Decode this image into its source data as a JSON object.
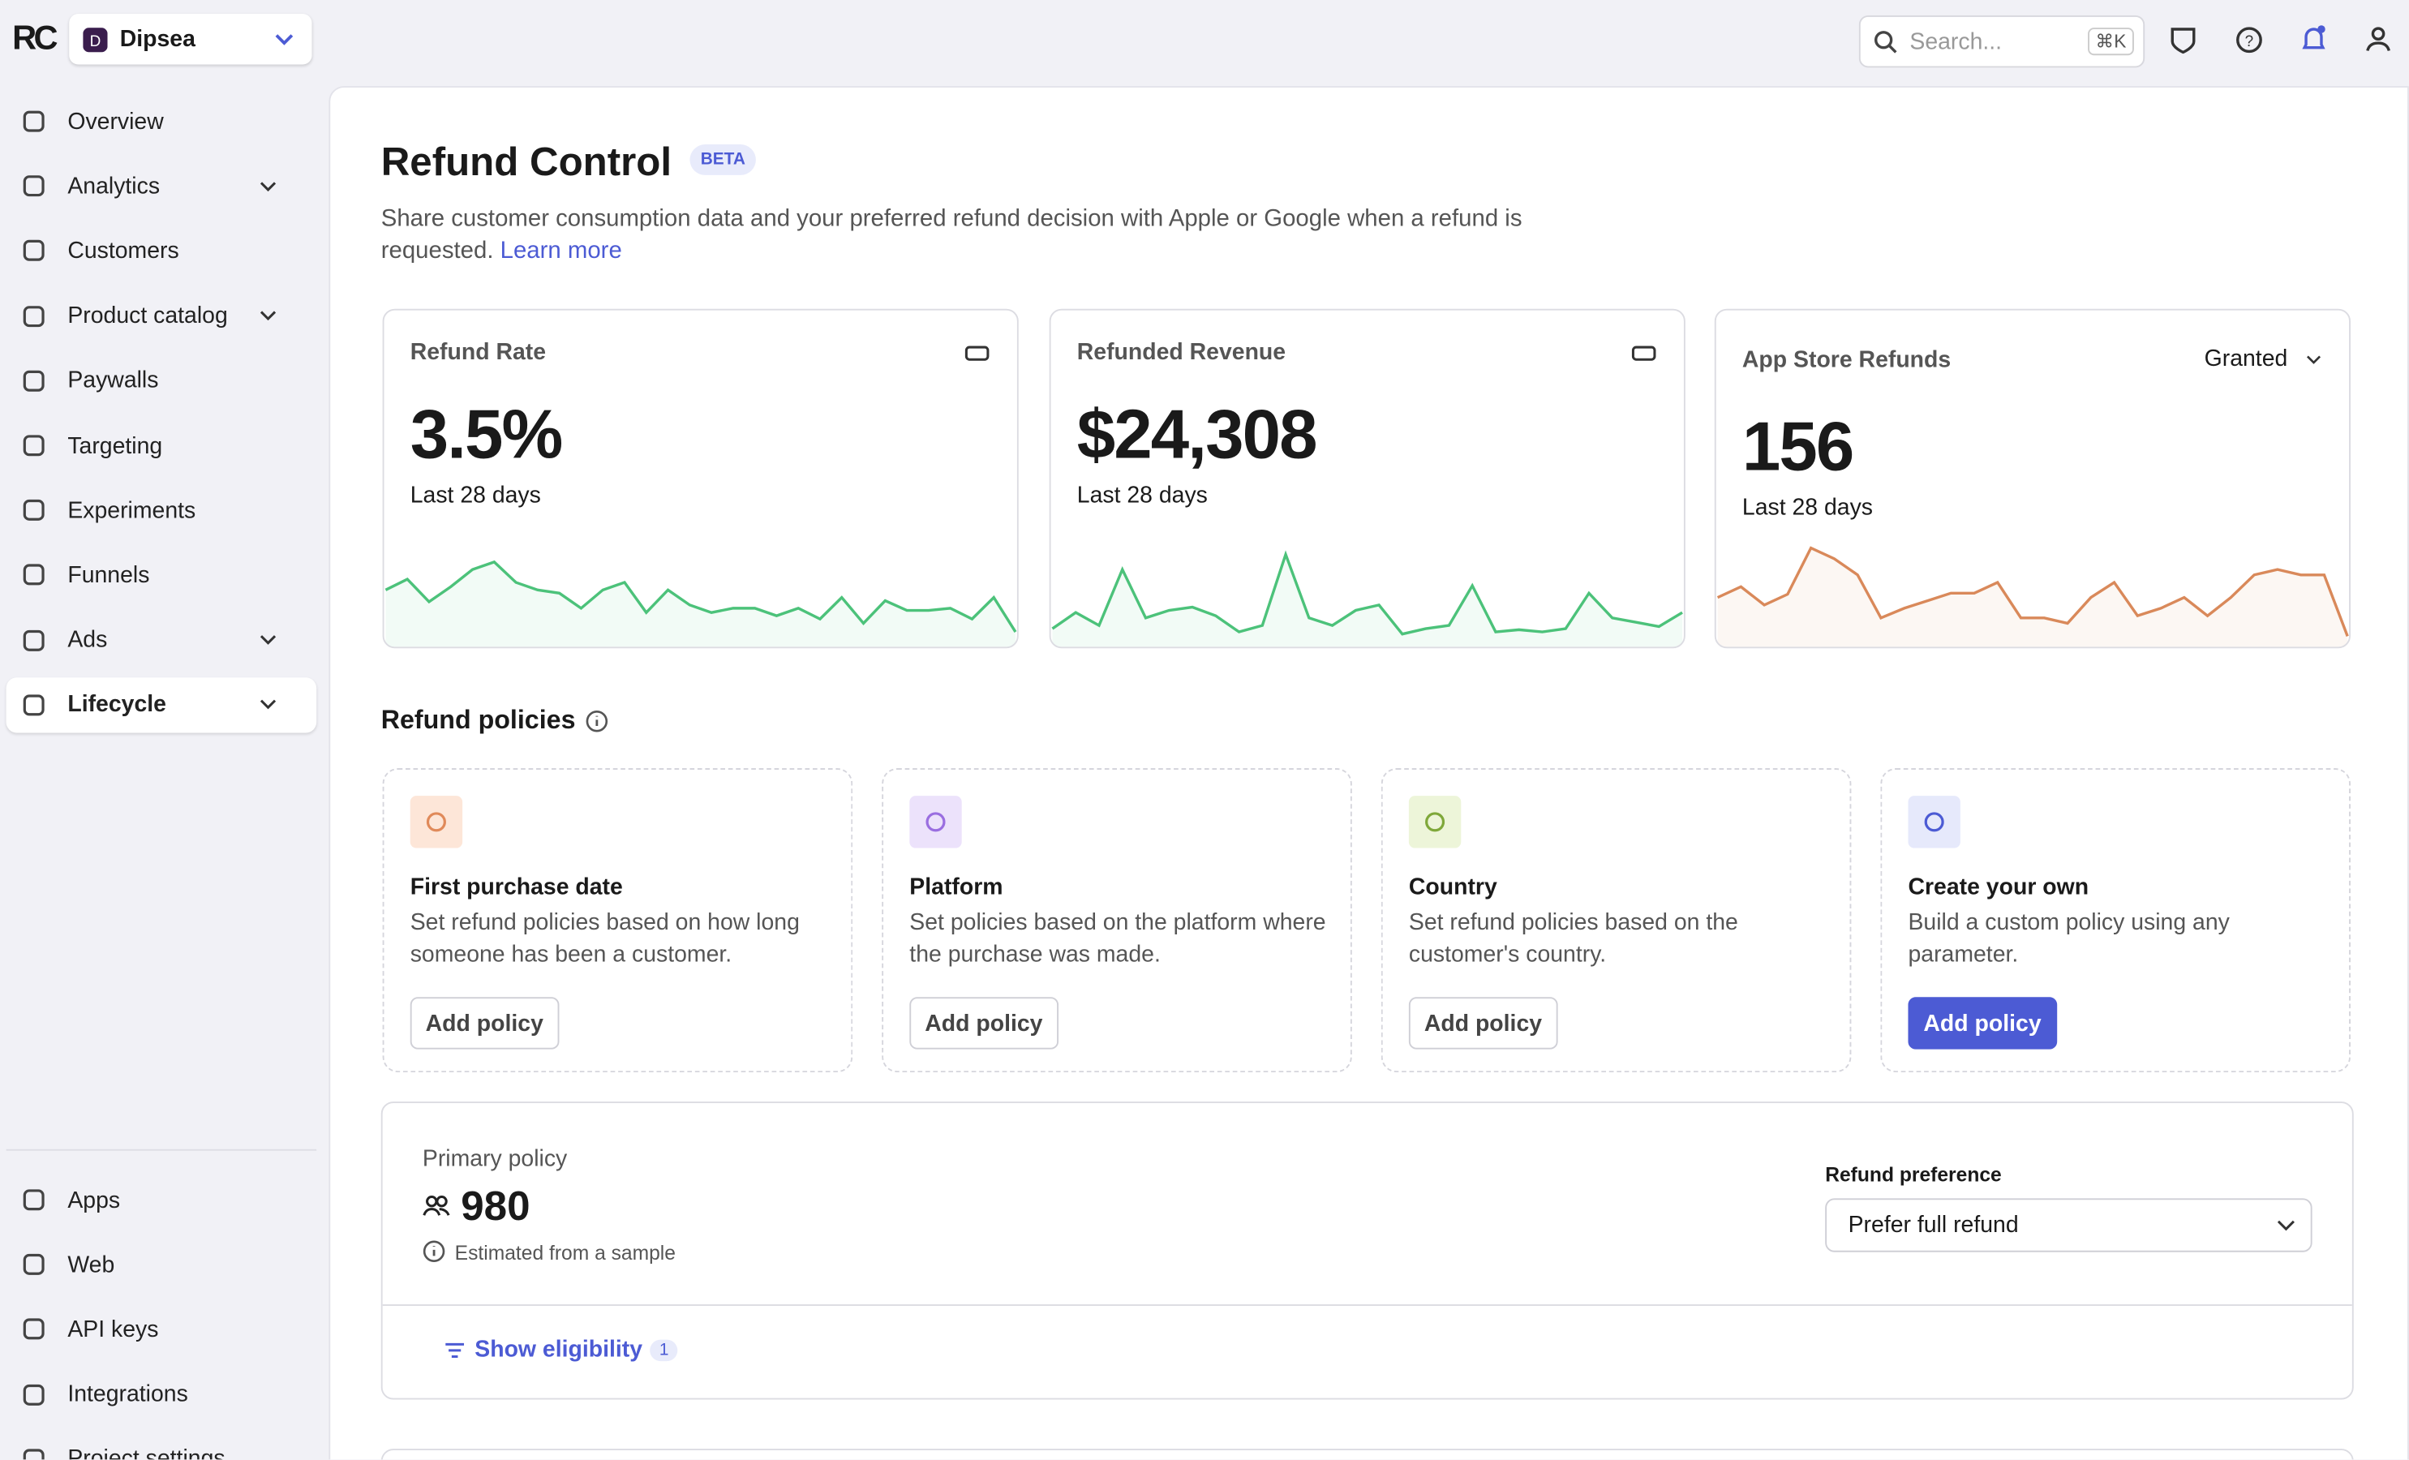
{
  "sidebar": {
    "logo": "RC",
    "project": "Dipsea",
    "nav": [
      "Overview",
      "Analytics",
      "Customers",
      "Product catalog",
      "Paywalls",
      "Targeting",
      "Experiments",
      "Funnels",
      "Ads",
      "Lifecycle"
    ],
    "bottom_nav": [
      "Apps",
      "Web",
      "API keys",
      "Integrations",
      "Project settings"
    ]
  },
  "topbar": {
    "search": "Search...",
    "shortcut": "⌘K"
  },
  "header": {
    "title": "Refund Control",
    "badge": "BETA",
    "description": "Share customer consumption data and your preferred refund decision with Apple or Google when a refund is requested.",
    "link": "Learn more"
  },
  "metrics": [
    {
      "label": "Refund Rate",
      "value": "3.5%",
      "period": "Last 28 days",
      "color": "#4cc27a",
      "sparkline": [
        50,
        60,
        39,
        53,
        69,
        76,
        57,
        50,
        47,
        33,
        50,
        57,
        29,
        50,
        36,
        29,
        33,
        33,
        26,
        33,
        23,
        43,
        19,
        40,
        31,
        31,
        33,
        23,
        43,
        11
      ]
    },
    {
      "label": "Refunded Revenue",
      "value": "$24,308",
      "period": "Last 28 days",
      "color": "#4cc27a",
      "sparkline": [
        14,
        29,
        17,
        69,
        24,
        31,
        34,
        26,
        11,
        17,
        83,
        24,
        17,
        31,
        36,
        9,
        14,
        17,
        54,
        11,
        13,
        11,
        14,
        47,
        24,
        20,
        16,
        29
      ]
    },
    {
      "label": "App Store Refunds",
      "value": 156,
      "period": "Last 28 days",
      "filter": "Granted",
      "color": "#d9895a",
      "sparkline": [
        43,
        53,
        36,
        46,
        89,
        79,
        64,
        24,
        33,
        40,
        47,
        47,
        57,
        24,
        24,
        19,
        43,
        57,
        26,
        33,
        43,
        26,
        43,
        64,
        69,
        64,
        64,
        7
      ]
    }
  ],
  "policies": {
    "title": "Refund policies",
    "cards": [
      {
        "title": "First purchase date",
        "description": "Set refund policies based on how long someone has been a customer.",
        "button": "Add policy"
      },
      {
        "title": "Platform",
        "description": "Set policies based on the platform where the purchase was made.",
        "button": "Add policy"
      },
      {
        "title": "Country",
        "description": "Set refund policies based on the customer's country.",
        "button": "Add policy"
      },
      {
        "title": "Create your own",
        "description": "Build a custom policy using any parameter.",
        "button": "Add policy"
      }
    ]
  },
  "primary_policy": {
    "label": "Primary policy",
    "count": 980,
    "note": "Estimated from a sample",
    "preference_label": "Refund preference",
    "preference": "Prefer full refund",
    "eligibility": "Show eligibility",
    "eligibility_count": 1
  }
}
